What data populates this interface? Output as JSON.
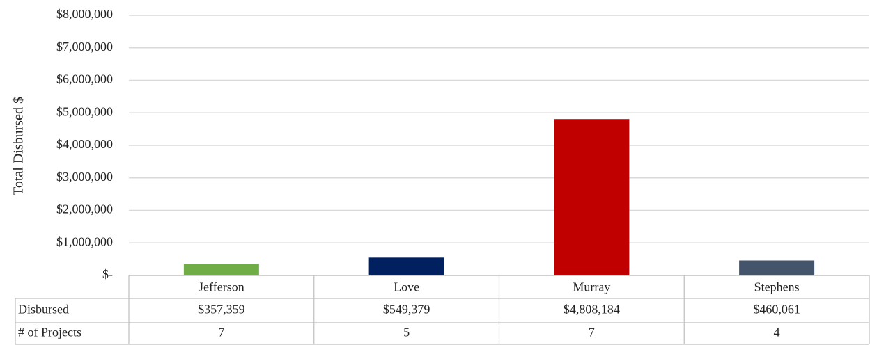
{
  "chart_data": {
    "type": "bar",
    "y_label": "Total Disbursed $",
    "categories": [
      "Jefferson",
      "Love",
      "Murray",
      "Stephens"
    ],
    "series": [
      {
        "name": "Disbursed",
        "colors": [
          "#70ad47",
          "#002060",
          "#c00000",
          "#44546a"
        ],
        "values": [
          357359,
          549379,
          4808184,
          460061
        ],
        "value_labels": [
          "$357,359",
          "$549,379",
          "$4,808,184",
          "$460,061"
        ]
      }
    ],
    "projects": {
      "name": "# of Projects",
      "values": [
        7,
        5,
        7,
        4
      ]
    },
    "ylim": [
      0,
      8000000
    ],
    "yticks": [
      {
        "value": 0,
        "label": "$-"
      },
      {
        "value": 1000000,
        "label": "$1,000,000"
      },
      {
        "value": 2000000,
        "label": "$2,000,000"
      },
      {
        "value": 3000000,
        "label": "$3,000,000"
      },
      {
        "value": 4000000,
        "label": "$4,000,000"
      },
      {
        "value": 5000000,
        "label": "$5,000,000"
      },
      {
        "value": 6000000,
        "label": "$6,000,000"
      },
      {
        "value": 7000000,
        "label": "$7,000,000"
      },
      {
        "value": 8000000,
        "label": "$8,000,000"
      }
    ],
    "grid": true
  }
}
